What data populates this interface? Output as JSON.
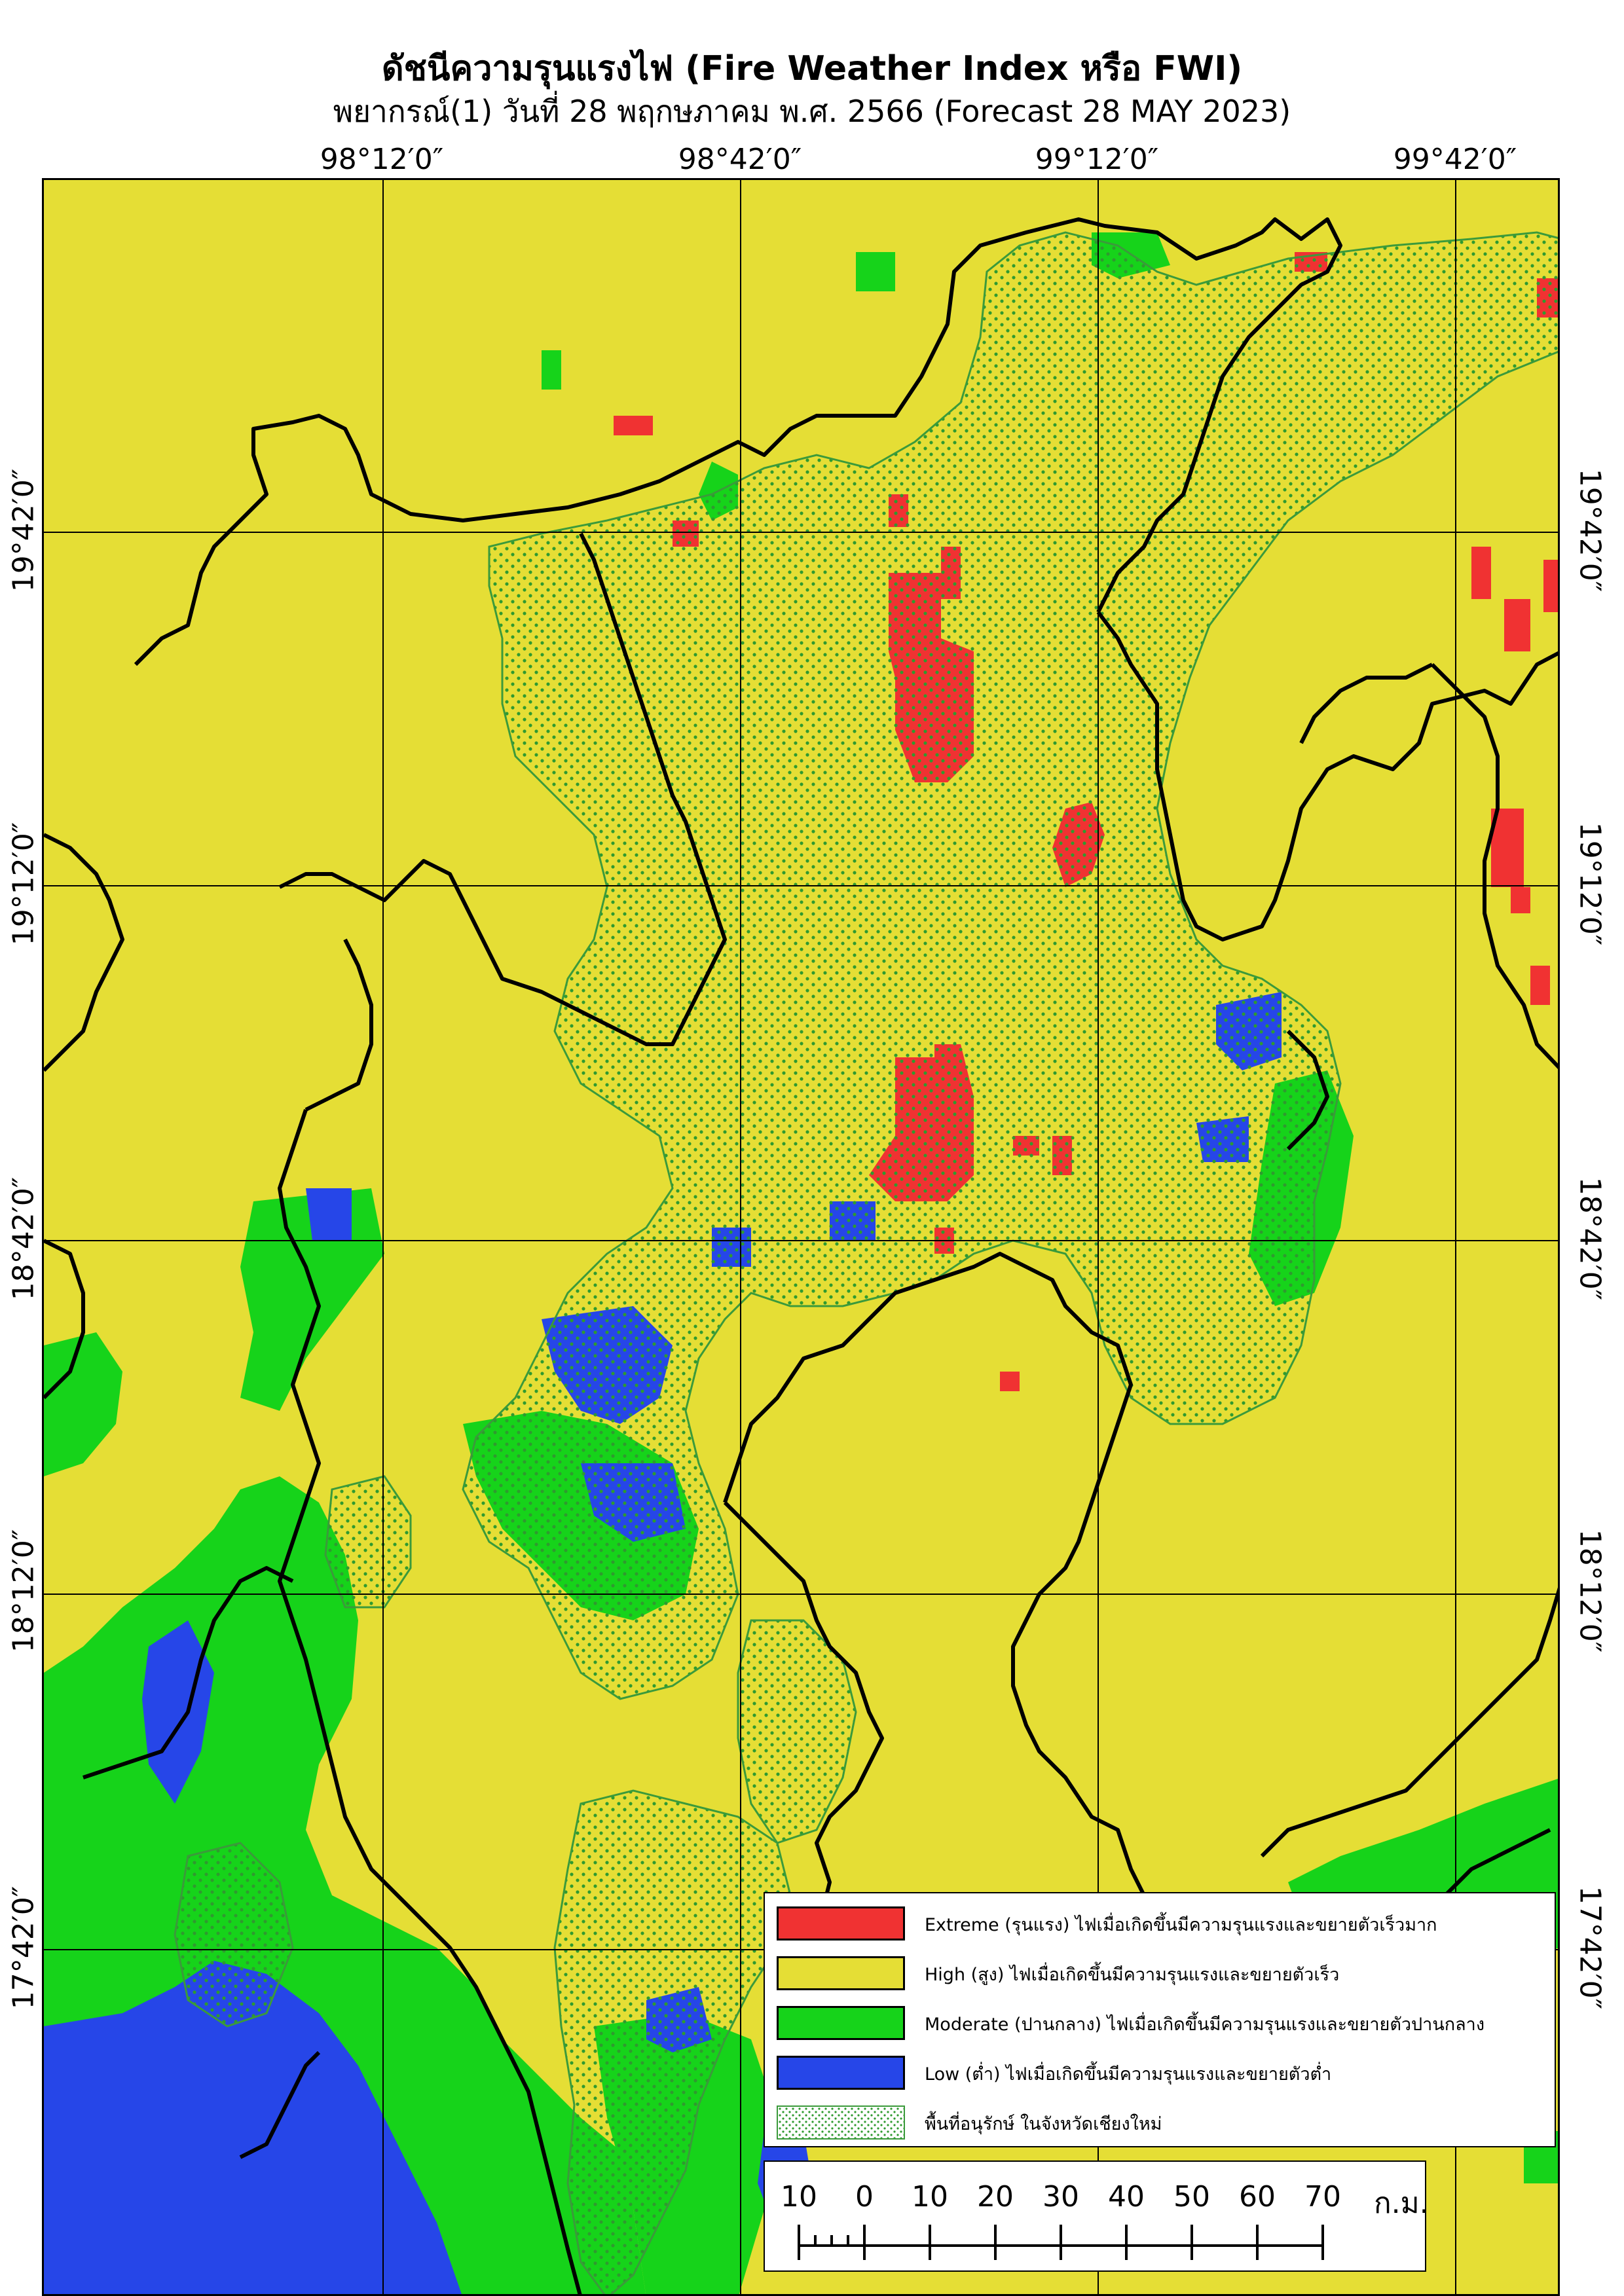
{
  "title": "ดัชนีความรุนแรงไฟ (Fire Weather Index หรือ FWI)",
  "subtitle": "พยากรณ์(1) วันที่ 28 พฤกษภาคม พ.ศ. 2566 (Forecast 28 MAY 2023)",
  "colors": {
    "extreme": "#f03232",
    "high": "#e5de35",
    "moderate": "#16d31a",
    "low": "#2646e8",
    "boundary": "#000000",
    "conservation_outline": "#3b9a3b",
    "conservation_dots": "#2f9a2f"
  },
  "graticule": {
    "longitudes": [
      "98°12′0″",
      "98°42′0″",
      "99°12′0″",
      "99°42′0″"
    ],
    "latitudes": [
      "19°42′0″",
      "19°12′0″",
      "18°42′0″",
      "18°12′0″",
      "17°42′0″"
    ]
  },
  "legend": {
    "items": [
      {
        "key": "extreme",
        "label": "Extreme (รุนแรง) ไฟเมื่อเกิดขึ้นมีความรุนแรงและขยายตัวเร็วมาก"
      },
      {
        "key": "high",
        "label": "High (สูง) ไฟเมื่อเกิดขึ้นมีความรุนแรงและขยายตัวเร็ว"
      },
      {
        "key": "moderate",
        "label": "Moderate (ปานกลาง) ไฟเมื่อเกิดขึ้นมีความรุนแรงและขยายตัวปานกลาง"
      },
      {
        "key": "low",
        "label": "Low (ต่ำ) ไฟเมื่อเกิดขึ้นมีความรุนแรงและขยายตัวต่ำ"
      },
      {
        "key": "conservation",
        "label": "พื้นที่อนุรักษ์ ในจังหวัดเชียงใหม่"
      }
    ]
  },
  "scale_bar": {
    "ticks": [
      "10",
      "0",
      "10",
      "20",
      "30",
      "40",
      "50",
      "60",
      "70"
    ],
    "unit": "ก.ม."
  }
}
